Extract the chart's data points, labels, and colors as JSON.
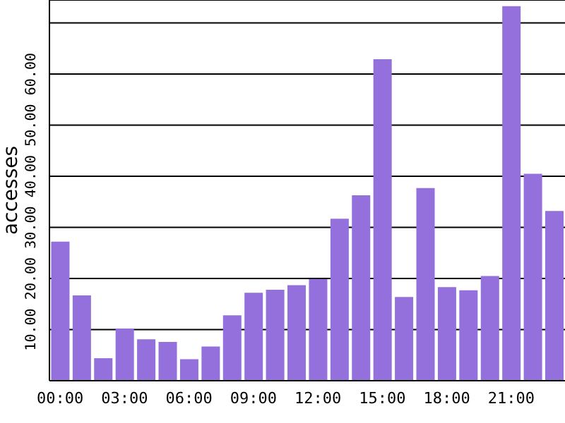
{
  "chart_data": {
    "type": "bar",
    "ylabel": "accesses",
    "categories": [
      "00:00",
      null,
      null,
      "03:00",
      null,
      null,
      "06:00",
      null,
      null,
      "09:00",
      null,
      null,
      "12:00",
      null,
      null,
      "15:00",
      null,
      null,
      "18:00",
      null,
      null,
      "21:00",
      null,
      null
    ],
    "values": [
      27.2,
      16.7,
      4.4,
      10.2,
      8.1,
      7.6,
      4.2,
      6.7,
      12.8,
      17.2,
      17.8,
      18.7,
      19.9,
      31.7,
      36.3,
      62.9,
      16.4,
      37.7,
      18.3,
      17.7,
      20.5,
      73.3,
      40.5,
      33.2
    ],
    "color": "#9370db",
    "ylim": [
      0,
      74.5
    ],
    "yticks": [
      {
        "value": 0,
        "label": null
      },
      {
        "value": 10,
        "label": "10.00"
      },
      {
        "value": 20,
        "label": "20.00"
      },
      {
        "value": 30,
        "label": "30.00"
      },
      {
        "value": 40,
        "label": "40.00"
      },
      {
        "value": 50,
        "label": "50.00"
      },
      {
        "value": 60,
        "label": "60.00"
      },
      {
        "value": 70,
        "label": null
      }
    ],
    "grid": "y"
  }
}
